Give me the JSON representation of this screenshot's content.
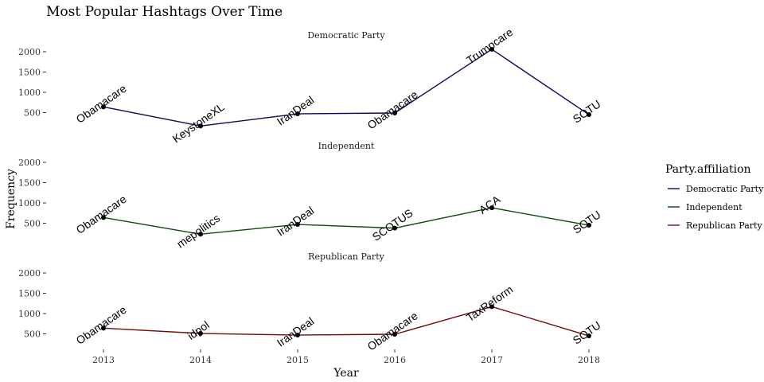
{
  "chart_data": {
    "type": "line",
    "title": "Most Popular Hashtags Over Time",
    "xlabel": "Year",
    "ylabel": "Frequency",
    "x": [
      "2013",
      "2014",
      "2015",
      "2016",
      "2017",
      "2018"
    ],
    "yticks": [
      "500",
      "1000",
      "1500",
      "2000"
    ],
    "ylim": [
      0,
      2200
    ],
    "legend": {
      "title": "Party.affiliation",
      "position": "right",
      "entries": [
        "Democratic Party",
        "Independent",
        "Republican Party"
      ]
    },
    "grid": false,
    "panels": [
      {
        "name": "Democratic Party",
        "color": "#0a0a5c",
        "values": [
          640,
          170,
          470,
          490,
          2060,
          450
        ],
        "labels": [
          "Obamacare",
          "KeystoneXL",
          "IranDeal",
          "Obamacare",
          "Trumpcare",
          "SOTU"
        ]
      },
      {
        "name": "Independent",
        "color": "#0b4d0b",
        "values": [
          640,
          230,
          470,
          380,
          880,
          450
        ],
        "labels": [
          "Obamacare",
          "mepolitics",
          "IranDeal",
          "SCOTUS",
          "ACA",
          "SOTU"
        ]
      },
      {
        "name": "Republican Party",
        "color": "#6e0b0b",
        "values": [
          640,
          510,
          470,
          490,
          1170,
          450
        ],
        "labels": [
          "Obamacare",
          "idpol",
          "IranDeal",
          "Obamacare",
          "TaxReform",
          "SOTU"
        ]
      }
    ]
  }
}
